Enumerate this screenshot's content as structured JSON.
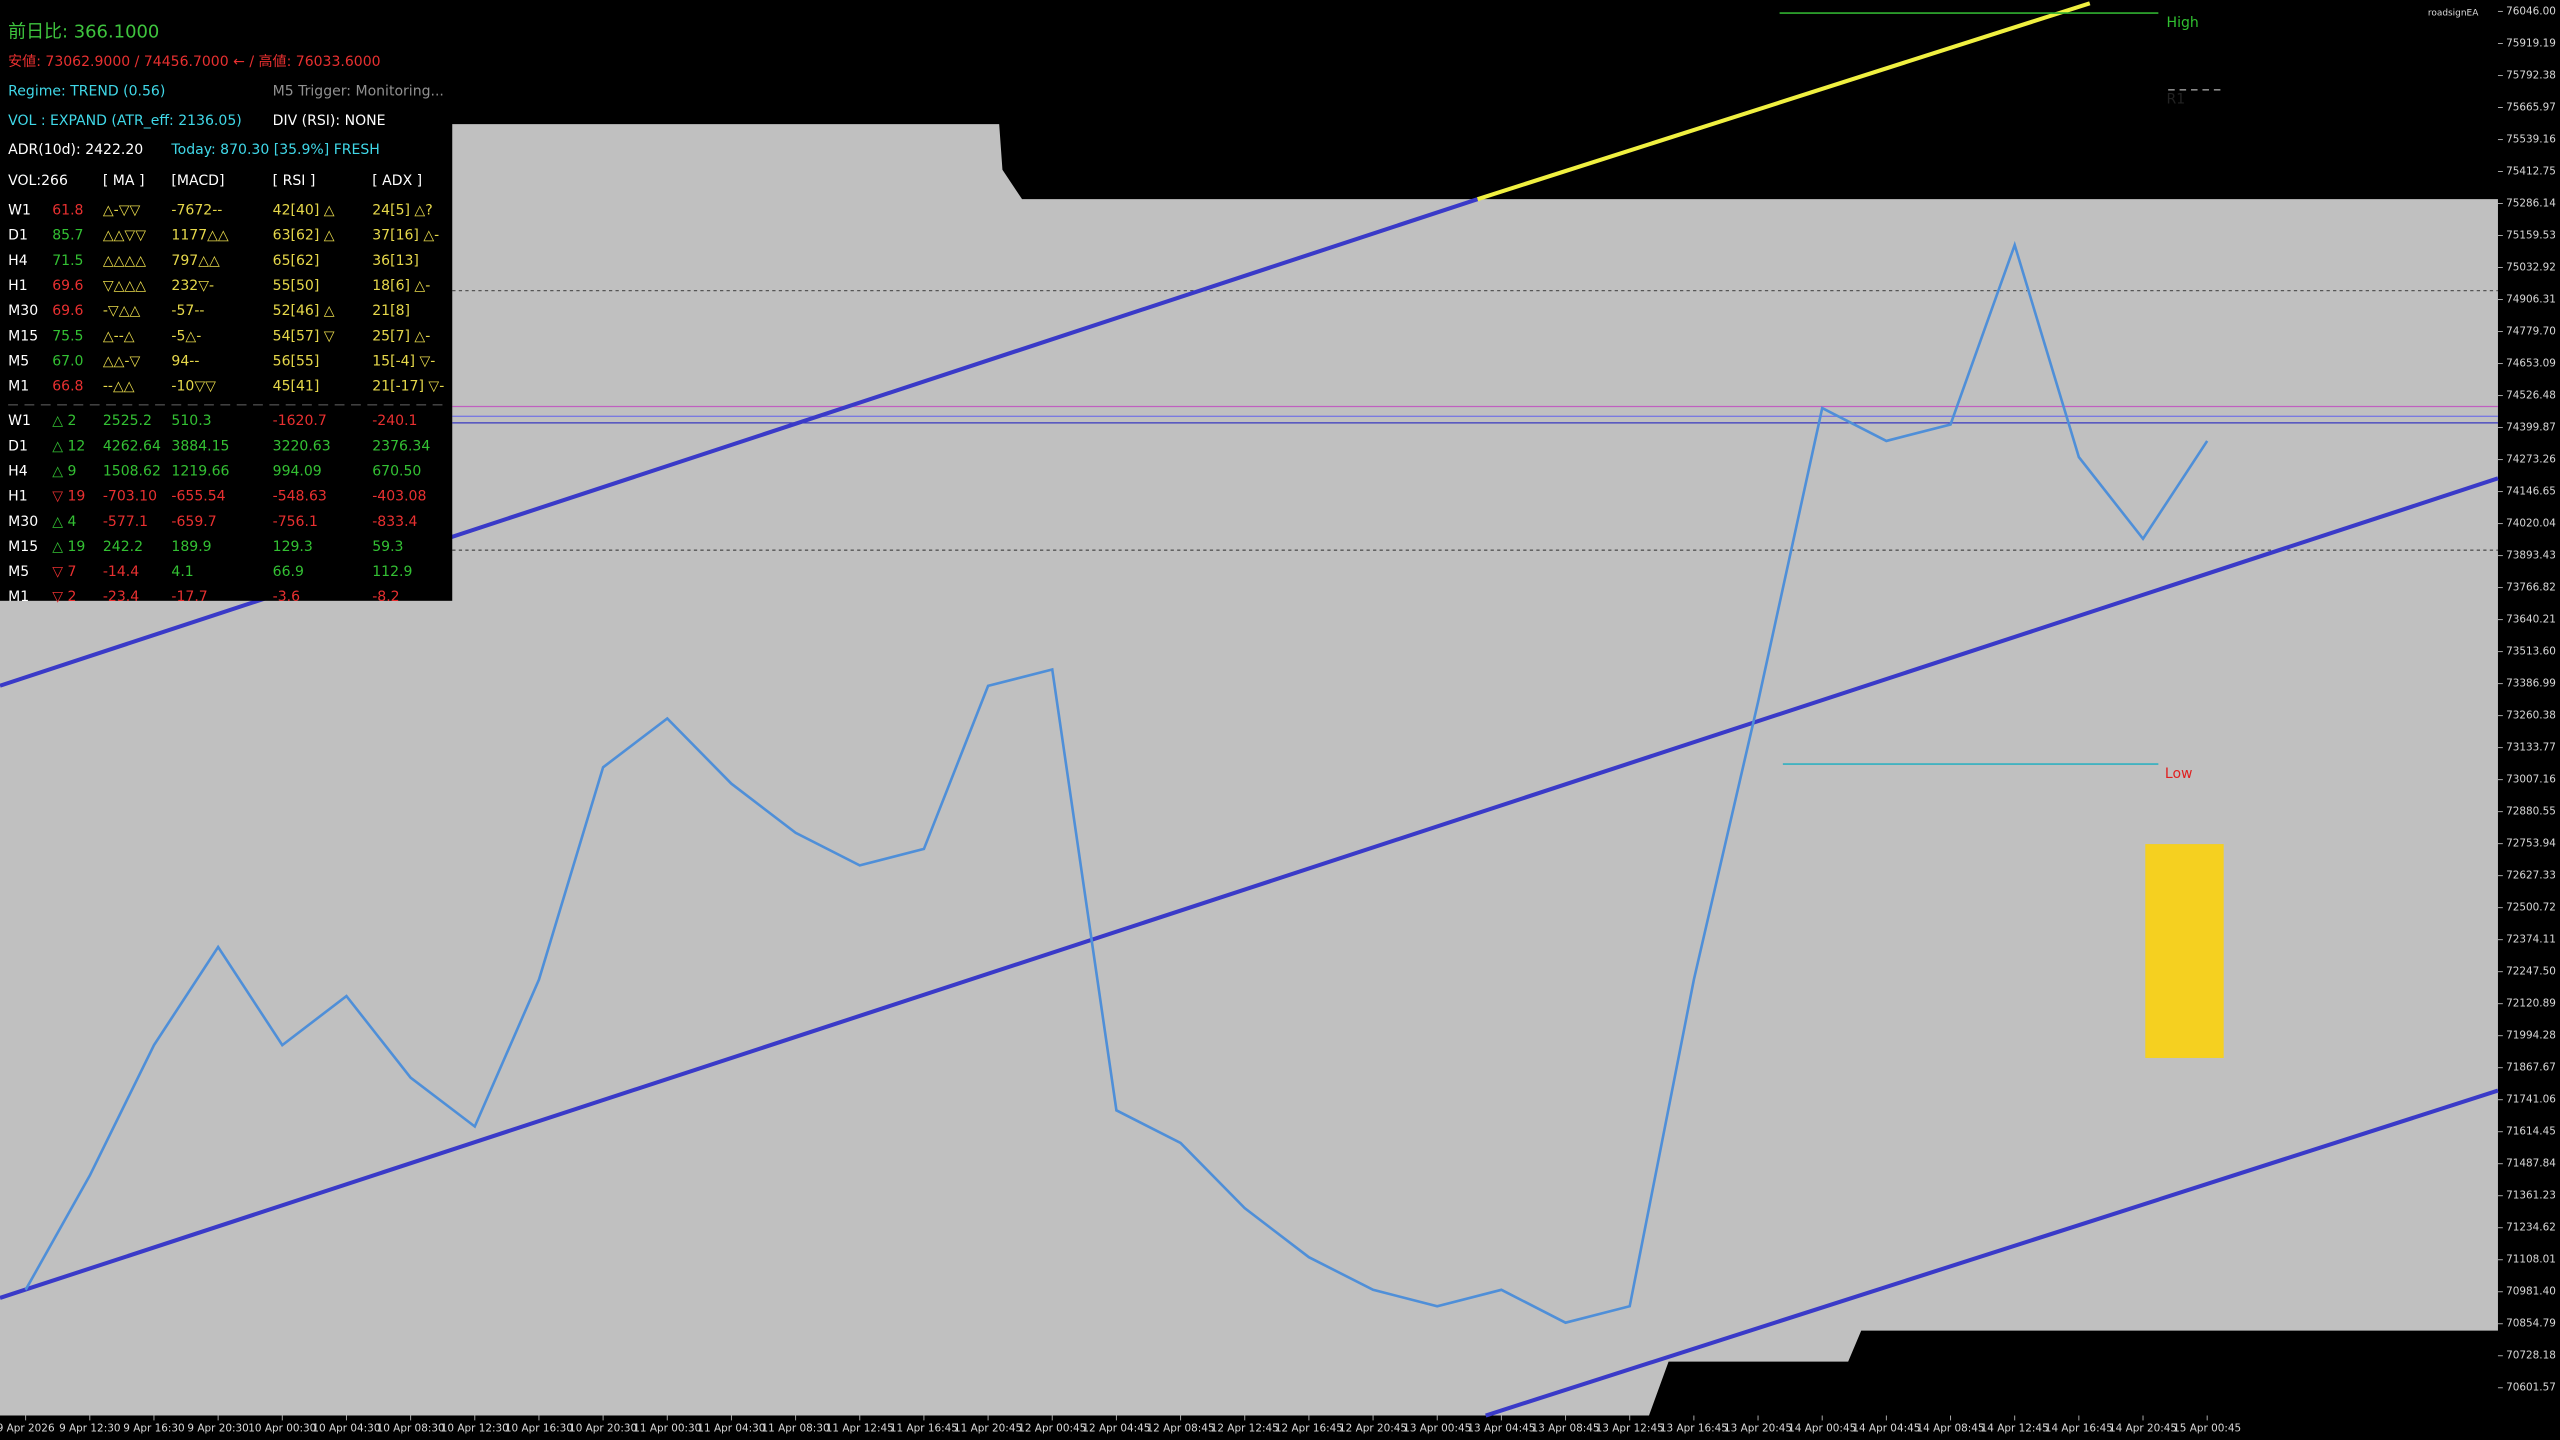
{
  "panel": {
    "change": "前日比: 366.1000",
    "range": "安値: 73062.9000 / 74456.7000 ← / 高値: 76033.6000",
    "regime": "Regime: TREND (0.56)",
    "trigger": "M5 Trigger: Monitoring...",
    "vol": "VOL : EXPAND (ATR_eff: 2136.05)",
    "div": "DIV (RSI): NONE",
    "adr": "ADR(10d): 2422.20",
    "today": "Today: 870.30 [35.9%] FRESH",
    "headers": [
      "VOL:266",
      "[ MA ]",
      "[MACD]",
      "[ RSI ]",
      "[ ADX ]"
    ],
    "table1": {
      "rows": [
        [
          "W1",
          "61.8",
          "△-▽▽",
          "-7672--",
          "42[40] △",
          "24[5] △?"
        ],
        [
          "D1",
          "85.7",
          "△△▽▽",
          "1177△△",
          "63[62] △",
          "37[16] △-"
        ],
        [
          "H4",
          "71.5",
          "△△△△",
          "797△△",
          "65[62]",
          "36[13]"
        ],
        [
          "H1",
          "69.6",
          "▽△△△",
          "232▽-",
          "55[50]",
          "18[6] △-"
        ],
        [
          "M30",
          "69.6",
          "-▽△△",
          "-57--",
          "52[46] △",
          "21[8]"
        ],
        [
          "M15",
          "75.5",
          "△--△",
          "-5△-",
          "54[57] ▽",
          "25[7] △-"
        ],
        [
          "M5",
          "67.0",
          "△△-▽",
          "94--",
          "56[55]",
          "15[-4] ▽-"
        ],
        [
          "M1",
          "66.8",
          "--△△",
          "-10▽▽",
          "45[41]",
          "21[-17] ▽-"
        ]
      ],
      "colors": [
        [
          "#ffffff",
          "#e83030",
          "#e6d84a",
          "#e6d84a",
          "#e6d84a",
          "#e6d84a"
        ],
        [
          "#ffffff",
          "#33c033",
          "#e6d84a",
          "#e6d84a",
          "#e6d84a",
          "#e6d84a"
        ],
        [
          "#ffffff",
          "#33c033",
          "#e6d84a",
          "#e6d84a",
          "#e6d84a",
          "#e6d84a"
        ],
        [
          "#ffffff",
          "#e83030",
          "#e6d84a",
          "#e6d84a",
          "#e6d84a",
          "#e6d84a"
        ],
        [
          "#ffffff",
          "#e83030",
          "#e6d84a",
          "#e6d84a",
          "#e6d84a",
          "#e6d84a"
        ],
        [
          "#ffffff",
          "#33c033",
          "#e6d84a",
          "#e6d84a",
          "#e6d84a",
          "#e6d84a"
        ],
        [
          "#ffffff",
          "#33c033",
          "#e6d84a",
          "#e6d84a",
          "#e6d84a",
          "#e6d84a"
        ],
        [
          "#ffffff",
          "#e83030",
          "#e6d84a",
          "#e6d84a",
          "#e6d84a",
          "#e6d84a"
        ]
      ]
    },
    "table2": {
      "rows": [
        [
          "W1",
          "△ 2",
          "2525.2",
          "510.3",
          "-1620.7",
          "-240.1"
        ],
        [
          "D1",
          "△ 12",
          "4262.64",
          "3884.15",
          "3220.63",
          "2376.34"
        ],
        [
          "H4",
          "△ 9",
          "1508.62",
          "1219.66",
          "994.09",
          "670.50"
        ],
        [
          "H1",
          "▽ 19",
          "-703.10",
          "-655.54",
          "-548.63",
          "-403.08"
        ],
        [
          "M30",
          "△ 4",
          "-577.1",
          "-659.7",
          "-756.1",
          "-833.4"
        ],
        [
          "M15",
          "△ 19",
          "242.2",
          "189.9",
          "129.3",
          "59.3"
        ],
        [
          "M5",
          "▽ 7",
          "-14.4",
          "4.1",
          "66.9",
          "112.9"
        ],
        [
          "M1",
          "▽ 2",
          "-23.4",
          "-17.7",
          "-3.6",
          "-8.2"
        ]
      ],
      "colors": [
        [
          "#ffffff",
          "#33c033",
          "#33c033",
          "#33c033",
          "#e83030",
          "#e83030"
        ],
        [
          "#ffffff",
          "#33c033",
          "#33c033",
          "#33c033",
          "#33c033",
          "#33c033"
        ],
        [
          "#ffffff",
          "#33c033",
          "#33c033",
          "#33c033",
          "#33c033",
          "#33c033"
        ],
        [
          "#ffffff",
          "#e83030",
          "#e83030",
          "#e83030",
          "#e83030",
          "#e83030"
        ],
        [
          "#ffffff",
          "#33c033",
          "#e83030",
          "#e83030",
          "#e83030",
          "#e83030"
        ],
        [
          "#ffffff",
          "#33c033",
          "#33c033",
          "#33c033",
          "#33c033",
          "#33c033"
        ],
        [
          "#ffffff",
          "#e83030",
          "#e83030",
          "#33c033",
          "#33c033",
          "#33c033"
        ],
        [
          "#ffffff",
          "#e83030",
          "#e83030",
          "#e83030",
          "#e83030",
          "#e83030"
        ]
      ]
    }
  },
  "chart_data": {
    "type": "line",
    "watermark": "roadsignEA",
    "annotations": [
      "High",
      "R1",
      "Low"
    ],
    "categories": [
      "9 Apr 2026",
      "9 Apr 12:30",
      "9 Apr 16:30",
      "9 Apr 20:30",
      "10 Apr 00:30",
      "10 Apr 04:30",
      "10 Apr 08:30",
      "10 Apr 12:30",
      "10 Apr 16:30",
      "10 Apr 20:30",
      "11 Apr 00:30",
      "11 Apr 04:30",
      "11 Apr 08:30",
      "11 Apr 12:45",
      "11 Apr 16:45",
      "11 Apr 20:45",
      "12 Apr 00:45",
      "12 Apr 04:45",
      "12 Apr 08:45",
      "12 Apr 12:45",
      "12 Apr 16:45",
      "12 Apr 20:45",
      "13 Apr 00:45",
      "13 Apr 04:45",
      "13 Apr 08:45",
      "13 Apr 12:45",
      "13 Apr 16:45",
      "13 Apr 20:45",
      "14 Apr 00:45",
      "14 Apr 04:45",
      "14 Apr 08:45",
      "14 Apr 12:45",
      "14 Apr 16:45",
      "14 Apr 20:45",
      "15 Apr 00:45"
    ],
    "values": [
      70989,
      71441,
      71957,
      72345,
      71957,
      72151,
      71828,
      71635,
      72216,
      73056,
      73249,
      72991,
      72797,
      72668,
      72733,
      73378,
      73443,
      71699,
      71570,
      71312,
      71118,
      70989,
      70924,
      70989,
      70859,
      70924,
      72216,
      73314,
      74477,
      74347,
      74412,
      75122,
      74283,
      73960,
      74347
    ],
    "color": "#4f8fd8",
    "ylim": [
      70491.8,
      76091.2
    ],
    "yticks": [
      {
        "value": 76046,
        "label": "76046.00"
      },
      75919.19,
      75792.38,
      75665.97,
      75539.16,
      75412.75,
      75286.14,
      75159.53,
      75032.92,
      74906.31,
      {
        "value": 74779.7,
        "label": "74779.70"
      },
      74653.09,
      74526.48,
      74399.87,
      74273.26,
      74146.65,
      74020.04,
      73893.43,
      73766.82,
      73640.21,
      {
        "value": 73513.6,
        "label": "73513.60"
      },
      73386.99,
      73260.38,
      73133.77,
      73007.16,
      72880.55,
      72753.94,
      72627.33,
      72500.72,
      72374.11,
      {
        "value": 72247.5,
        "label": "72247.50"
      },
      72120.89,
      71994.28,
      71867.67,
      71741.06,
      71614.45,
      71487.84,
      71361.23,
      71234.62,
      71108.01,
      {
        "value": 70981.4,
        "label": "70981.40"
      },
      70854.79,
      70728.18,
      70601.57
    ]
  }
}
